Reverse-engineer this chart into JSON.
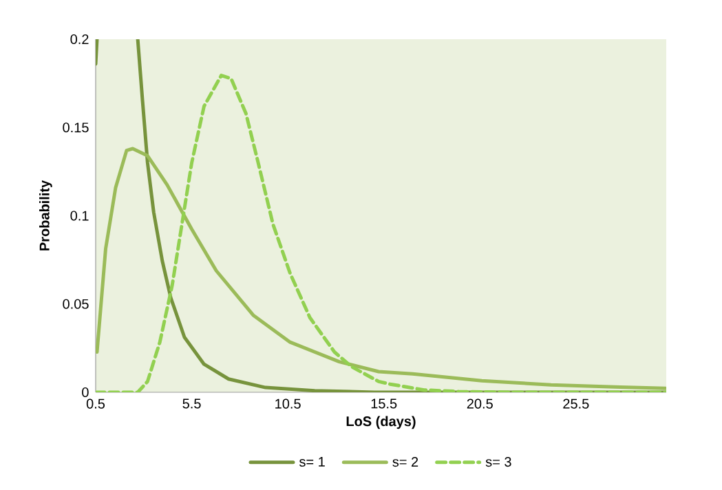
{
  "chart_data": {
    "type": "line",
    "xlabel": "LoS (days)",
    "ylabel": "Probability",
    "xlim": [
      0.5,
      30.2
    ],
    "ylim": [
      0,
      0.2
    ],
    "xticks": [
      0.5,
      5.5,
      10.5,
      15.5,
      20.5,
      25.5
    ],
    "yticks": [
      0,
      0.05,
      0.1,
      0.15,
      0.2
    ],
    "legend": "bottom",
    "line_style": "solid",
    "series": [
      {
        "name": "s= 1",
        "color": "#77933c",
        "x": [
          0.5,
          0.57,
          1.5,
          2.69,
          2.94,
          3.2,
          3.52,
          3.97,
          4.41,
          5.12,
          6.14,
          7.42,
          9.34,
          11.9,
          15,
          20,
          25,
          30.2
        ],
        "values": [
          0.186,
          0.2,
          null,
          0.2,
          0.165,
          0.13,
          0.102,
          0.0743,
          0.0535,
          0.0312,
          0.0159,
          0.0075,
          0.0027,
          0.0009,
          0,
          0,
          0,
          0
        ]
      },
      {
        "name": "s= 2",
        "color": "#9bbb59",
        "x": [
          0.57,
          1.02,
          1.54,
          2.11,
          2.43,
          3.2,
          4.22,
          5.5,
          6.78,
          8.7,
          10.62,
          13.18,
          15.23,
          17.0,
          20.6,
          24.2,
          27.8,
          30.17
        ],
        "values": [
          0.0228,
          0.0813,
          0.116,
          0.137,
          0.138,
          0.134,
          0.1175,
          0.0924,
          0.0688,
          0.0437,
          0.0284,
          0.0173,
          0.0117,
          0.0104,
          0.0065,
          0.0042,
          0.0029,
          0.0022
        ]
      },
      {
        "name": "s= 3",
        "color": "#92d050",
        "line_style": "dashed",
        "x": [
          0.5,
          2.69,
          3.2,
          3.84,
          4.48,
          4.99,
          5.5,
          6.14,
          7.04,
          7.55,
          8.32,
          8.96,
          9.73,
          10.62,
          11.65,
          12.93,
          13.82,
          15.23,
          15.83,
          17.6,
          19.4,
          22,
          26,
          30.2
        ],
        "values": [
          0,
          0,
          0.0061,
          0.0284,
          0.0604,
          0.0952,
          0.13,
          0.162,
          0.1795,
          0.1777,
          0.158,
          0.13,
          0.0952,
          0.0674,
          0.0423,
          0.0228,
          0.0145,
          0.0061,
          0.0046,
          0.0013,
          0.0004,
          0,
          0,
          0
        ]
      }
    ]
  }
}
